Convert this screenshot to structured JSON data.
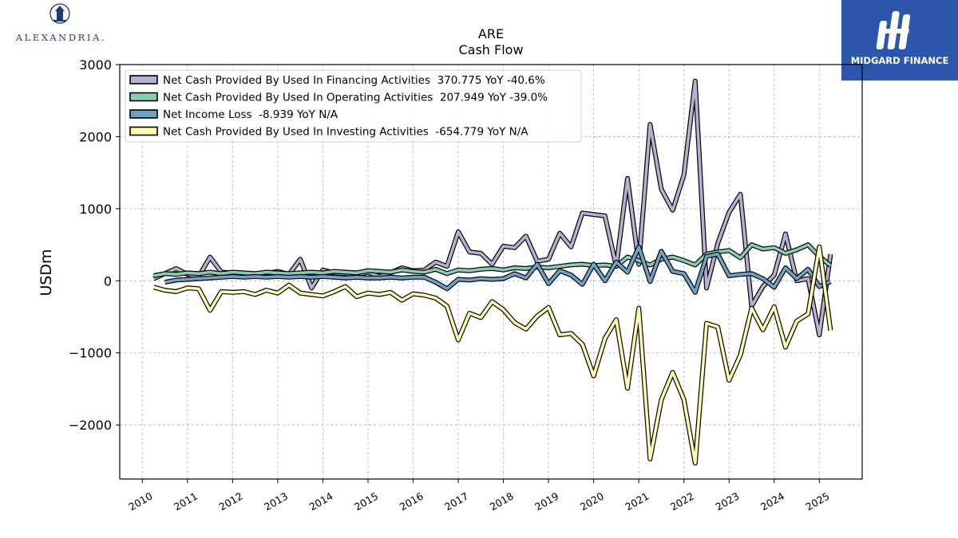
{
  "logos": {
    "left": {
      "text": "ALEXANDRIA.",
      "icon": "tower-icon"
    },
    "right": {
      "text": "MIDGARD FINANCE",
      "icon": "midgard-monogram-icon",
      "background": "#2b56ab"
    }
  },
  "chart_data": {
    "type": "line",
    "title": "ARE",
    "subtitle": "Cash Flow",
    "xlabel": "",
    "ylabel": "USDm",
    "xlim": [
      2009.5,
      2025.95
    ],
    "ylim": [
      -2750,
      3000
    ],
    "yticks": [
      -2000,
      -1000,
      0,
      1000,
      2000,
      3000
    ],
    "yticklabels": [
      "−2000",
      "−1000",
      "0",
      "1000",
      "2000",
      "3000"
    ],
    "xticks": [
      2010,
      2011,
      2012,
      2013,
      2014,
      2015,
      2016,
      2017,
      2018,
      2019,
      2020,
      2021,
      2022,
      2023,
      2024,
      2025
    ],
    "xticklabels": [
      "2010",
      "2011",
      "2012",
      "2013",
      "2014",
      "2015",
      "2016",
      "2017",
      "2018",
      "2019",
      "2020",
      "2021",
      "2022",
      "2023",
      "2024",
      "2025"
    ],
    "grid": true,
    "legend_position": "top-left",
    "series": [
      {
        "name": "Net Cash Provided By Used In Financing Activities",
        "legend_label": "Net Cash Provided By Used In Financing Activities  370.775 YoY -40.6%",
        "color": "#b5b0d4",
        "points": [
          [
            2010.25,
            30
          ],
          [
            2010.5,
            100
          ],
          [
            2010.75,
            170
          ],
          [
            2011.0,
            90
          ],
          [
            2011.25,
            60
          ],
          [
            2011.5,
            330
          ],
          [
            2011.75,
            120
          ],
          [
            2012.0,
            110
          ],
          [
            2012.25,
            90
          ],
          [
            2012.5,
            70
          ],
          [
            2012.75,
            100
          ],
          [
            2013.0,
            130
          ],
          [
            2013.25,
            90
          ],
          [
            2013.5,
            300
          ],
          [
            2013.75,
            -100
          ],
          [
            2014.0,
            150
          ],
          [
            2014.25,
            110
          ],
          [
            2014.5,
            100
          ],
          [
            2014.75,
            80
          ],
          [
            2015.0,
            120
          ],
          [
            2015.25,
            60
          ],
          [
            2015.5,
            110
          ],
          [
            2015.75,
            180
          ],
          [
            2016.0,
            140
          ],
          [
            2016.25,
            150
          ],
          [
            2016.5,
            260
          ],
          [
            2016.75,
            200
          ],
          [
            2017.0,
            680
          ],
          [
            2017.25,
            400
          ],
          [
            2017.5,
            380
          ],
          [
            2017.75,
            230
          ],
          [
            2018.0,
            480
          ],
          [
            2018.25,
            460
          ],
          [
            2018.5,
            620
          ],
          [
            2018.75,
            270
          ],
          [
            2019.0,
            300
          ],
          [
            2019.25,
            660
          ],
          [
            2019.5,
            470
          ],
          [
            2019.75,
            940
          ],
          [
            2020.0,
            920
          ],
          [
            2020.25,
            900
          ],
          [
            2020.5,
            200
          ],
          [
            2020.75,
            1420
          ],
          [
            2021.0,
            230
          ],
          [
            2021.25,
            2170
          ],
          [
            2021.5,
            1270
          ],
          [
            2021.75,
            980
          ],
          [
            2022.0,
            1470
          ],
          [
            2022.25,
            2770
          ],
          [
            2022.5,
            -100
          ],
          [
            2022.75,
            520
          ],
          [
            2023.0,
            950
          ],
          [
            2023.25,
            1200
          ],
          [
            2023.5,
            -350
          ],
          [
            2023.75,
            -80
          ],
          [
            2024.0,
            80
          ],
          [
            2024.25,
            650
          ],
          [
            2024.5,
            0
          ],
          [
            2024.75,
            30
          ],
          [
            2025.0,
            -750
          ],
          [
            2025.25,
            370
          ]
        ]
      },
      {
        "name": "Net Cash Provided By Used In Operating Activities",
        "legend_label": "Net Cash Provided By Used In Operating Activities  207.949 YoY -39.0%",
        "color": "#86cdb5",
        "points": [
          [
            2010.25,
            70
          ],
          [
            2010.5,
            100
          ],
          [
            2010.75,
            90
          ],
          [
            2011.0,
            110
          ],
          [
            2011.25,
            100
          ],
          [
            2011.5,
            120
          ],
          [
            2011.75,
            100
          ],
          [
            2012.0,
            120
          ],
          [
            2012.25,
            110
          ],
          [
            2012.5,
            100
          ],
          [
            2012.75,
            120
          ],
          [
            2013.0,
            110
          ],
          [
            2013.25,
            100
          ],
          [
            2013.5,
            110
          ],
          [
            2013.75,
            120
          ],
          [
            2014.0,
            110
          ],
          [
            2014.25,
            130
          ],
          [
            2014.5,
            120
          ],
          [
            2014.75,
            110
          ],
          [
            2015.0,
            140
          ],
          [
            2015.25,
            130
          ],
          [
            2015.5,
            120
          ],
          [
            2015.75,
            150
          ],
          [
            2016.0,
            130
          ],
          [
            2016.25,
            120
          ],
          [
            2016.5,
            160
          ],
          [
            2016.75,
            100
          ],
          [
            2017.0,
            150
          ],
          [
            2017.25,
            140
          ],
          [
            2017.5,
            160
          ],
          [
            2017.75,
            170
          ],
          [
            2018.0,
            150
          ],
          [
            2018.25,
            180
          ],
          [
            2018.5,
            170
          ],
          [
            2018.75,
            190
          ],
          [
            2019.0,
            180
          ],
          [
            2019.25,
            200
          ],
          [
            2019.5,
            220
          ],
          [
            2019.75,
            230
          ],
          [
            2020.0,
            210
          ],
          [
            2020.25,
            220
          ],
          [
            2020.5,
            200
          ],
          [
            2020.75,
            330
          ],
          [
            2021.0,
            280
          ],
          [
            2021.25,
            220
          ],
          [
            2021.5,
            300
          ],
          [
            2021.75,
            330
          ],
          [
            2022.0,
            280
          ],
          [
            2022.25,
            220
          ],
          [
            2022.5,
            370
          ],
          [
            2022.75,
            400
          ],
          [
            2023.0,
            420
          ],
          [
            2023.25,
            320
          ],
          [
            2023.5,
            500
          ],
          [
            2023.75,
            440
          ],
          [
            2024.0,
            460
          ],
          [
            2024.25,
            380
          ],
          [
            2024.5,
            430
          ],
          [
            2024.75,
            500
          ],
          [
            2025.0,
            340
          ],
          [
            2025.25,
            210
          ]
        ]
      },
      {
        "name": "Net Income Loss",
        "legend_label": "Net Income Loss  -8.939 YoY N/A",
        "color": "#6fa2c7",
        "points": [
          [
            2010.5,
            -20
          ],
          [
            2010.75,
            10
          ],
          [
            2011.0,
            20
          ],
          [
            2011.25,
            30
          ],
          [
            2011.5,
            40
          ],
          [
            2011.75,
            50
          ],
          [
            2012.0,
            60
          ],
          [
            2012.25,
            50
          ],
          [
            2012.5,
            60
          ],
          [
            2012.75,
            50
          ],
          [
            2013.0,
            60
          ],
          [
            2013.25,
            50
          ],
          [
            2013.5,
            60
          ],
          [
            2013.75,
            50
          ],
          [
            2014.0,
            60
          ],
          [
            2014.25,
            50
          ],
          [
            2014.5,
            40
          ],
          [
            2014.75,
            50
          ],
          [
            2015.0,
            40
          ],
          [
            2015.25,
            40
          ],
          [
            2015.5,
            50
          ],
          [
            2015.75,
            40
          ],
          [
            2016.0,
            50
          ],
          [
            2016.25,
            50
          ],
          [
            2016.5,
            -20
          ],
          [
            2016.75,
            -110
          ],
          [
            2017.0,
            20
          ],
          [
            2017.25,
            10
          ],
          [
            2017.5,
            30
          ],
          [
            2017.75,
            20
          ],
          [
            2018.0,
            30
          ],
          [
            2018.25,
            100
          ],
          [
            2018.5,
            40
          ],
          [
            2018.75,
            230
          ],
          [
            2019.0,
            -40
          ],
          [
            2019.25,
            140
          ],
          [
            2019.5,
            80
          ],
          [
            2019.75,
            -50
          ],
          [
            2020.0,
            230
          ],
          [
            2020.25,
            0
          ],
          [
            2020.5,
            260
          ],
          [
            2020.75,
            120
          ],
          [
            2021.0,
            470
          ],
          [
            2021.25,
            -10
          ],
          [
            2021.5,
            410
          ],
          [
            2021.75,
            130
          ],
          [
            2022.0,
            100
          ],
          [
            2022.25,
            -160
          ],
          [
            2022.5,
            340
          ],
          [
            2022.75,
            370
          ],
          [
            2023.0,
            70
          ],
          [
            2023.25,
            90
          ],
          [
            2023.5,
            100
          ],
          [
            2023.75,
            30
          ],
          [
            2024.0,
            -90
          ],
          [
            2024.25,
            180
          ],
          [
            2024.5,
            30
          ],
          [
            2024.75,
            160
          ],
          [
            2025.0,
            -80
          ],
          [
            2025.25,
            -10
          ]
        ]
      },
      {
        "name": "Net Cash Provided By Used In Investing Activities",
        "legend_label": "Net Cash Provided By Used In Investing Activities  -654.779 YoY N/A",
        "color": "#fdfbb0",
        "points": [
          [
            2010.25,
            -90
          ],
          [
            2010.5,
            -130
          ],
          [
            2010.75,
            -150
          ],
          [
            2011.0,
            -100
          ],
          [
            2011.25,
            -110
          ],
          [
            2011.5,
            -410
          ],
          [
            2011.75,
            -150
          ],
          [
            2012.0,
            -160
          ],
          [
            2012.25,
            -150
          ],
          [
            2012.5,
            -190
          ],
          [
            2012.75,
            -130
          ],
          [
            2013.0,
            -170
          ],
          [
            2013.25,
            -60
          ],
          [
            2013.5,
            -170
          ],
          [
            2013.75,
            -190
          ],
          [
            2014.0,
            -210
          ],
          [
            2014.25,
            -150
          ],
          [
            2014.5,
            -80
          ],
          [
            2014.75,
            -220
          ],
          [
            2015.0,
            -170
          ],
          [
            2015.25,
            -190
          ],
          [
            2015.5,
            -160
          ],
          [
            2015.75,
            -270
          ],
          [
            2016.0,
            -180
          ],
          [
            2016.25,
            -200
          ],
          [
            2016.5,
            -240
          ],
          [
            2016.75,
            -350
          ],
          [
            2017.0,
            -820
          ],
          [
            2017.25,
            -450
          ],
          [
            2017.5,
            -510
          ],
          [
            2017.75,
            -290
          ],
          [
            2018.0,
            -400
          ],
          [
            2018.25,
            -580
          ],
          [
            2018.5,
            -670
          ],
          [
            2018.75,
            -490
          ],
          [
            2019.0,
            -370
          ],
          [
            2019.25,
            -750
          ],
          [
            2019.5,
            -730
          ],
          [
            2019.75,
            -880
          ],
          [
            2020.0,
            -1320
          ],
          [
            2020.25,
            -800
          ],
          [
            2020.5,
            -540
          ],
          [
            2020.75,
            -1490
          ],
          [
            2021.0,
            -380
          ],
          [
            2021.25,
            -2470
          ],
          [
            2021.5,
            -1650
          ],
          [
            2021.75,
            -1270
          ],
          [
            2022.0,
            -1650
          ],
          [
            2022.25,
            -2530
          ],
          [
            2022.5,
            -590
          ],
          [
            2022.75,
            -640
          ],
          [
            2023.0,
            -1380
          ],
          [
            2023.25,
            -1030
          ],
          [
            2023.5,
            -380
          ],
          [
            2023.75,
            -680
          ],
          [
            2024.0,
            -360
          ],
          [
            2024.25,
            -920
          ],
          [
            2024.5,
            -560
          ],
          [
            2024.75,
            -460
          ],
          [
            2025.0,
            470
          ],
          [
            2025.25,
            -690
          ]
        ]
      }
    ]
  }
}
